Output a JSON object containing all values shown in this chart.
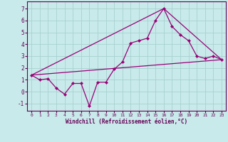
{
  "xlabel": "Windchill (Refroidissement éolien,°C)",
  "ylabel": "",
  "background_color": "#c8eaea",
  "grid_color": "#a8d0d0",
  "line_color": "#990077",
  "xlim": [
    -0.5,
    23.5
  ],
  "ylim": [
    -1.6,
    7.6
  ],
  "xticks": [
    0,
    1,
    2,
    3,
    4,
    5,
    6,
    7,
    8,
    9,
    10,
    11,
    12,
    13,
    14,
    15,
    16,
    17,
    18,
    19,
    20,
    21,
    22,
    23
  ],
  "yticks": [
    -1,
    0,
    1,
    2,
    3,
    4,
    5,
    6,
    7
  ],
  "series1_x": [
    0,
    1,
    2,
    3,
    4,
    5,
    6,
    7,
    8,
    9,
    10,
    11,
    12,
    13,
    14,
    15,
    16,
    17,
    18,
    19,
    20,
    21,
    22,
    23
  ],
  "series1_y": [
    1.4,
    1.0,
    1.1,
    0.3,
    -0.2,
    0.7,
    0.7,
    -1.2,
    0.8,
    0.8,
    1.9,
    2.5,
    4.1,
    4.3,
    4.5,
    6.0,
    7.0,
    5.5,
    4.8,
    4.3,
    3.0,
    2.8,
    3.0,
    2.7
  ],
  "series2_x": [
    0,
    23
  ],
  "series2_y": [
    1.4,
    2.7
  ],
  "series3_x": [
    0,
    16,
    23
  ],
  "series3_y": [
    1.4,
    7.0,
    2.7
  ]
}
